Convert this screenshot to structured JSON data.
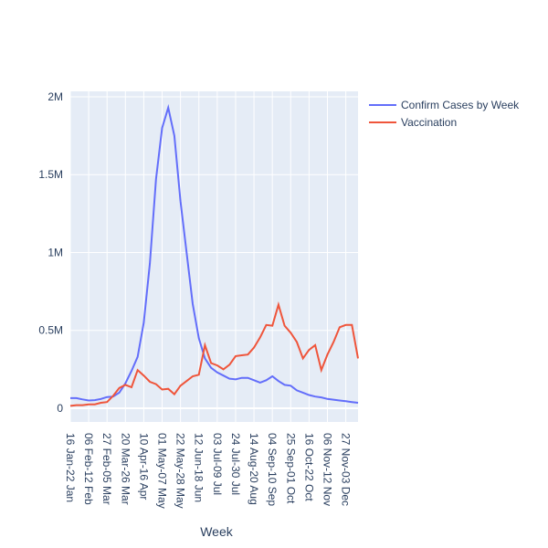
{
  "chart_data": {
    "type": "line",
    "x_label": "Week",
    "categories": [
      "16 Jan-22 Jan",
      null,
      null,
      "06 Feb-12 Feb",
      null,
      null,
      "27 Feb-05 Mar",
      null,
      null,
      "20 Mar-26 Mar",
      null,
      null,
      "10 Apr-16 Apr",
      null,
      null,
      "01 May-07 May",
      null,
      null,
      "22 May-28 May",
      null,
      null,
      "12 Jun-18 Jun",
      null,
      null,
      "03 Jul-09 Jul",
      null,
      null,
      "24 Jul-30 Jul",
      null,
      null,
      "14 Aug-20 Aug",
      null,
      null,
      "04 Sep-10 Sep",
      null,
      null,
      "25 Sep-01 Oct",
      null,
      null,
      "16 Oct-22 Oct",
      null,
      null,
      "06 Nov-12 Nov",
      null,
      null,
      "27 Nov-03 Dec",
      null,
      null
    ],
    "series": [
      {
        "name": "Confirm Cases by Week",
        "color": "#636efa",
        "values": [
          65000,
          65000,
          57000,
          50000,
          52000,
          60000,
          72000,
          75000,
          100000,
          160000,
          240000,
          330000,
          550000,
          930000,
          1470000,
          1800000,
          1930000,
          1750000,
          1330000,
          1000000,
          670000,
          450000,
          320000,
          260000,
          230000,
          210000,
          190000,
          185000,
          195000,
          195000,
          180000,
          165000,
          180000,
          205000,
          175000,
          150000,
          145000,
          115000,
          100000,
          85000,
          75000,
          70000,
          60000,
          55000,
          50000,
          45000,
          40000,
          35000
        ]
      },
      {
        "name": "Vaccination",
        "color": "#EF553B",
        "values": [
          15000,
          20000,
          20000,
          25000,
          25000,
          35000,
          40000,
          80000,
          130000,
          150000,
          135000,
          245000,
          210000,
          170000,
          155000,
          120000,
          125000,
          90000,
          145000,
          175000,
          205000,
          215000,
          405000,
          290000,
          275000,
          250000,
          280000,
          335000,
          340000,
          345000,
          390000,
          455000,
          535000,
          530000,
          665000,
          530000,
          485000,
          425000,
          320000,
          375000,
          405000,
          245000,
          345000,
          425000,
          520000,
          535000,
          535000,
          320000
        ]
      }
    ],
    "ylim": [
      -88000,
      2035000
    ],
    "yticks": [
      0,
      {
        "value": 500000,
        "label": "0.5M"
      },
      {
        "value": 1000000,
        "label": "1M"
      },
      {
        "value": 1500000,
        "label": "1.5M"
      },
      {
        "value": 2000000,
        "label": "2M"
      }
    ],
    "grid": true,
    "legend": "right"
  }
}
